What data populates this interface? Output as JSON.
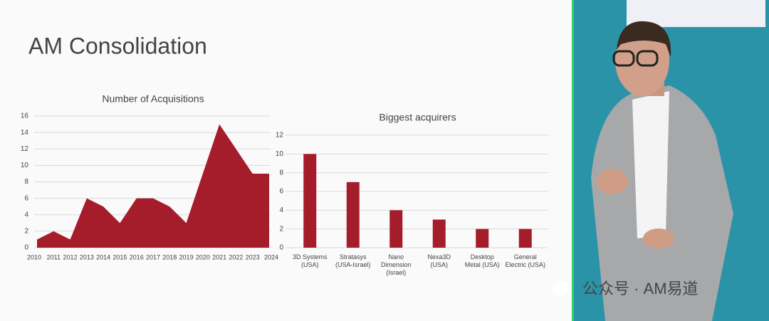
{
  "slide_title": "AM Consolidation",
  "watermark": "公众号 · AM易道",
  "chart_data": [
    {
      "type": "area",
      "title": "Number of Acquisitions",
      "categories": [
        "2010",
        "2011",
        "2012",
        "2013",
        "2014",
        "2015",
        "2016",
        "2017",
        "2018",
        "2019",
        "2020",
        "2021",
        "2022",
        "2023",
        "2024"
      ],
      "values": [
        1,
        2,
        1,
        6,
        5,
        3,
        6,
        6,
        5,
        3,
        9,
        15,
        12,
        9,
        9
      ],
      "color": "#a51c2a",
      "ylim": [
        0,
        16
      ],
      "yticks": [
        0,
        2,
        4,
        6,
        8,
        10,
        12,
        14,
        16
      ],
      "grid": true
    },
    {
      "type": "bar",
      "title": "Biggest acquirers",
      "categories": [
        "3D Systems\n(USA)",
        "Stratasys\n(USA-Israel)",
        "Nano\nDimension\n(Israel)",
        "Nexa3D\n(USA)",
        "Desktop\nMetal (USA)",
        "General\nElectric (USA)"
      ],
      "values": [
        10,
        7,
        4,
        3,
        2,
        2
      ],
      "color": "#a51c2a",
      "ylim": [
        0,
        12
      ],
      "yticks": [
        0,
        2,
        4,
        6,
        8,
        10,
        12
      ],
      "grid": true
    }
  ]
}
